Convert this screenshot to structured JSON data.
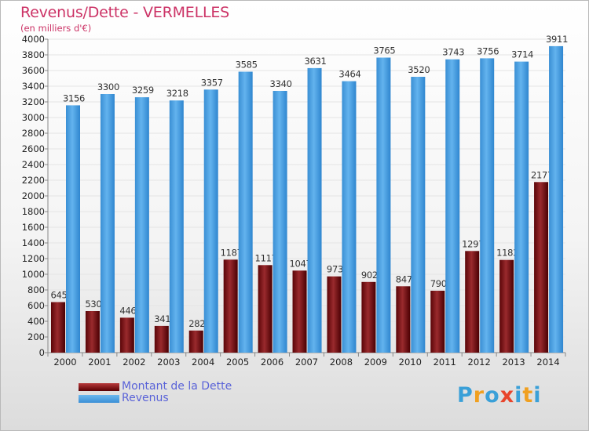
{
  "header": {
    "title": "Revenus/Dette - VERMELLES",
    "subtitle": "(en milliers d'€)"
  },
  "legend": {
    "items": [
      {
        "label": "Montant de la Dette",
        "color": "#7a0f12"
      },
      {
        "label": "Revenus",
        "color": "#4ea3e2"
      }
    ]
  },
  "logo": {
    "letters": [
      "P",
      "r",
      "o",
      "x",
      "i",
      "t",
      "i"
    ],
    "colors": [
      "#3aa0d8",
      "#f0a020",
      "#3aa0d8",
      "#e8452c",
      "#3aa0d8",
      "#f0a020",
      "#3aa0d8"
    ]
  },
  "chart_data": {
    "type": "bar",
    "categories": [
      "2000",
      "2001",
      "2002",
      "2003",
      "2004",
      "2005",
      "2006",
      "2007",
      "2008",
      "2009",
      "2010",
      "2011",
      "2012",
      "2013",
      "2014"
    ],
    "series": [
      {
        "name": "Montant de la Dette",
        "values": [
          645,
          530,
          446,
          341,
          282,
          1187,
          1117,
          1047,
          973,
          902,
          847,
          790,
          1297,
          1183,
          2177
        ],
        "labels": [
          "645",
          "530",
          "446",
          "341",
          "282",
          "1187",
          "1117",
          "1047",
          "973",
          "902",
          "847",
          "790",
          "1297",
          "1183",
          "2177"
        ]
      },
      {
        "name": "Revenus",
        "values": [
          3156,
          3300,
          3259,
          3218,
          3357,
          3585,
          3340,
          3631,
          3464,
          3765,
          3520,
          3743,
          3756,
          3714,
          3911
        ],
        "labels": [
          "3156",
          "3300",
          "3259",
          "3218",
          "3357",
          "3585",
          "3340",
          "3631",
          "3464",
          "3765",
          "3520",
          "3743",
          "3756",
          "3714",
          "3911"
        ]
      }
    ],
    "ylim": [
      0,
      4000
    ],
    "yticks": [
      "0",
      "200",
      "400",
      "600",
      "800",
      "1000",
      "1200",
      "1400",
      "1600",
      "1800",
      "2000",
      "2200",
      "2400",
      "2600",
      "2800",
      "3000",
      "3200",
      "3400",
      "3600",
      "3800",
      "4000"
    ],
    "grid": true,
    "legend_position": "bottom-left"
  }
}
